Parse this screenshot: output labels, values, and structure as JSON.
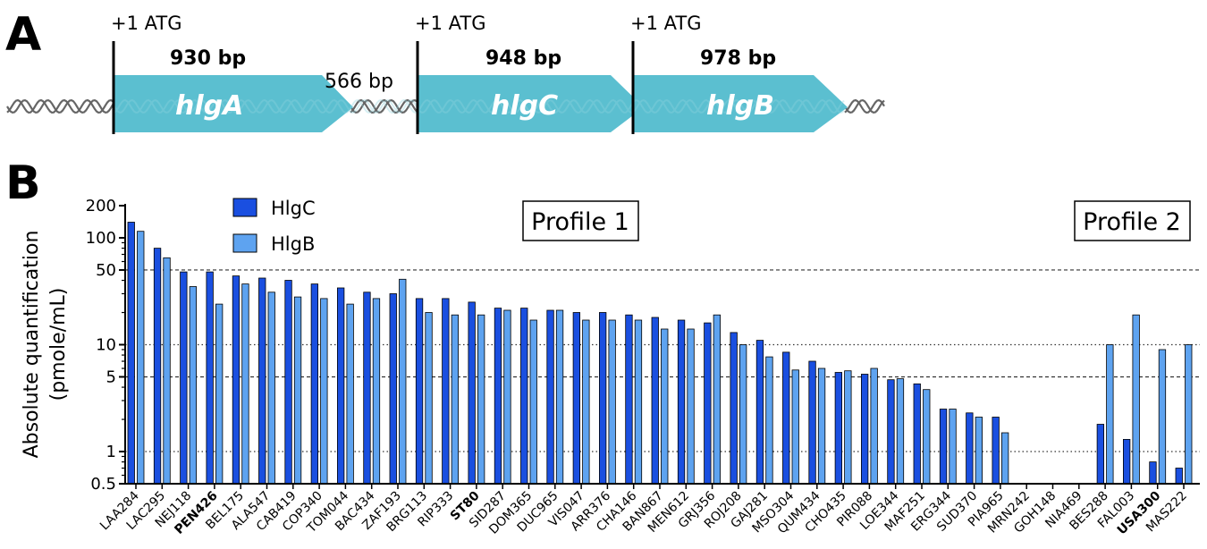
{
  "figure": {
    "panel_a_letter": "A",
    "panel_b_letter": "B"
  },
  "gene_map": {
    "genes": [
      {
        "start_label": "+1 ATG",
        "length_label": "930 bp",
        "name": "hlgA"
      },
      {
        "start_label": "+1 ATG",
        "length_label": "948 bp",
        "name": "hlgC"
      },
      {
        "start_label": "+1 ATG",
        "length_label": "978 bp",
        "name": "hlgB"
      }
    ],
    "intergenic_label": "566 bp",
    "gene_color": "#5bbfd0",
    "dna_color": "#666666"
  },
  "chart_data": {
    "type": "bar",
    "ylabel_line1": "Absolute quantification",
    "ylabel_line2": "(pmole/mL)",
    "yscale": "log",
    "ylim": [
      0.5,
      200
    ],
    "yticks": [
      0.5,
      1,
      5,
      10,
      50,
      100,
      200
    ],
    "ytick_labels": [
      "0.5",
      "1",
      "5",
      "10",
      "50",
      "100",
      "200"
    ],
    "reference_lines": [
      {
        "value": 50,
        "style": "dashed"
      },
      {
        "value": 10,
        "style": "dotted"
      },
      {
        "value": 5,
        "style": "dashed"
      },
      {
        "value": 1,
        "style": "dotted"
      }
    ],
    "legend_position": "top-left",
    "annotations": [
      "Profile 1",
      "Profile 2"
    ],
    "bold_categories": [
      "PEN426",
      "ST80",
      "USA300"
    ],
    "categories": [
      "LAA284",
      "LAC295",
      "NEJ118",
      "PEN426",
      "BEL175",
      "ALA547",
      "CAB419",
      "COP340",
      "TOM044",
      "BAC434",
      "ZAF193",
      "BRG113",
      "RIP333",
      "ST80",
      "SID287",
      "DOM365",
      "DUC965",
      "VIS047",
      "ARR376",
      "CHA146",
      "BAN867",
      "MEN612",
      "GRJ356",
      "ROJ208",
      "GAJ281",
      "MSO304",
      "QUM434",
      "CHO435",
      "PIR088",
      "LOE344",
      "MAF251",
      "ERG344",
      "SUD370",
      "PIA965",
      "MRN242",
      "GOH148",
      "NIA469",
      "BES288",
      "FAL003",
      "USA300",
      "MAS222"
    ],
    "series": [
      {
        "name": "HlgC",
        "color": "#1a4fe0",
        "values": [
          140,
          80,
          48,
          48,
          44,
          42,
          40,
          37,
          34,
          31,
          30,
          27,
          27,
          25,
          22,
          22,
          21,
          20,
          20,
          19,
          18,
          17,
          16,
          13,
          11,
          8.5,
          7,
          5.5,
          5.3,
          4.7,
          4.3,
          2.5,
          2.3,
          2.1,
          null,
          null,
          null,
          1.8,
          1.3,
          0.8,
          0.7
        ]
      },
      {
        "name": "HlgB",
        "color": "#5ea3f0",
        "values": [
          115,
          65,
          35,
          24,
          37,
          31,
          28,
          27,
          24,
          27,
          41,
          20,
          19,
          19,
          21,
          17,
          21,
          17,
          17,
          17,
          14,
          14,
          19,
          10,
          7.7,
          5.8,
          6,
          5.7,
          6,
          4.8,
          3.8,
          2.5,
          2.1,
          1.5,
          null,
          null,
          null,
          10,
          19,
          9,
          10
        ]
      }
    ]
  }
}
